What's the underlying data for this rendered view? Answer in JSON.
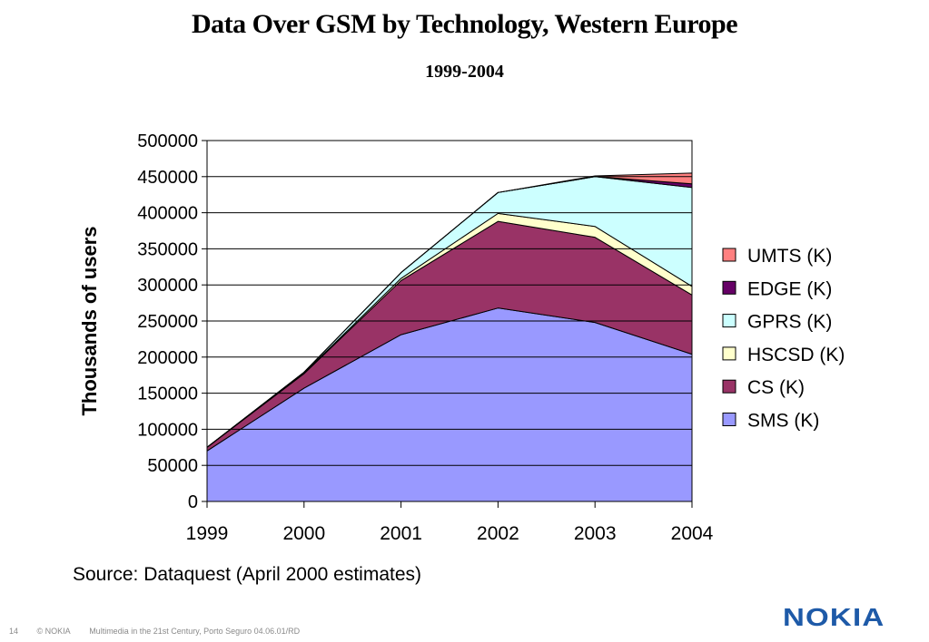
{
  "header": {
    "title": "Data Over GSM by Technology, Western Europe",
    "subtitle": "1999-2004"
  },
  "chart_data": {
    "type": "area",
    "stacked": true,
    "ylabel": "Thousands of users",
    "xlabel": "",
    "ylim": [
      0,
      500000
    ],
    "yticks": [
      "500000",
      "450000",
      "400000",
      "350000",
      "300000",
      "250000",
      "200000",
      "150000",
      "100000",
      "50000",
      "0"
    ],
    "categories": [
      "1999",
      "2000",
      "2001",
      "2002",
      "2003",
      "2004"
    ],
    "grid": "horizontal",
    "legend_position": "right",
    "series": [
      {
        "name": "SMS (K)",
        "color": "#9999ff",
        "values": [
          70000,
          157000,
          231000,
          268000,
          248000,
          204000
        ]
      },
      {
        "name": "CS (K)",
        "color": "#993366",
        "values": [
          5000,
          20000,
          75000,
          120000,
          118000,
          82000
        ]
      },
      {
        "name": "HSCSD (K)",
        "color": "#ffffcc",
        "values": [
          0,
          1000,
          3000,
          11000,
          15000,
          12000
        ]
      },
      {
        "name": "GPRS (K)",
        "color": "#ccffff",
        "values": [
          0,
          1000,
          8000,
          29000,
          69000,
          137000
        ]
      },
      {
        "name": "EDGE (K)",
        "color": "#660066",
        "values": [
          0,
          0,
          0,
          0,
          0,
          5000
        ]
      },
      {
        "name": "UMTS (K)",
        "color": "#ff8080",
        "values": [
          0,
          0,
          0,
          0,
          1000,
          15000
        ]
      }
    ],
    "legend_order": [
      "UMTS (K)",
      "EDGE (K)",
      "GPRS (K)",
      "HSCSD (K)",
      "CS (K)",
      "SMS (K)"
    ]
  },
  "source": "Source: Dataquest (April 2000 estimates)",
  "footer": {
    "page": "14",
    "copyright": "© NOKIA",
    "text": "Multimedia in the 21st Century, Porto Seguro 04.06.01/RD"
  },
  "logo": "NOKIA"
}
